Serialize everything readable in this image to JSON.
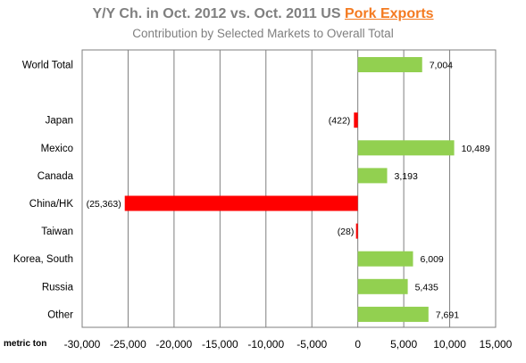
{
  "header": {
    "title_main": "Y/Y Ch.  in Oct. 2012 vs. Oct. 2011 US ",
    "title_highlight": "Pork Exports",
    "subtitle": "Contribution  by Selected Markets to Overall Total"
  },
  "chart_data": {
    "type": "bar",
    "orientation": "horizontal",
    "title": "Y/Y Ch.  in Oct. 2012 vs. Oct. 2011 US Pork Exports",
    "subtitle": "Contribution  by Selected Markets to Overall Total",
    "xlabel": "metric ton",
    "categories": [
      "World Total",
      "",
      "Japan",
      "Mexico",
      "Canada",
      "China/HK",
      "Taiwan",
      "Korea, South",
      "Russia",
      "Other"
    ],
    "values": [
      7004,
      null,
      -422,
      10489,
      3193,
      -25363,
      -28,
      6009,
      5435,
      7691
    ],
    "data_labels": [
      "7,004",
      "",
      "(422)",
      "10,489",
      "3,193",
      "(25,363)",
      "(28)",
      "6,009",
      "5,435",
      "7,691"
    ],
    "xlim": [
      -30000,
      15000
    ],
    "xticks": [
      -30000,
      -25000,
      -20000,
      -15000,
      -10000,
      -5000,
      0,
      5000,
      10000,
      15000
    ],
    "xtick_labels": [
      "-30,000",
      "-25,000",
      "-20,000",
      "-15,000",
      "-10,000",
      "-5,000",
      "0",
      "5,000",
      "10,000",
      "15,000"
    ],
    "grid": true,
    "colors": {
      "positive": "#92d050",
      "negative": "#ff0000",
      "grid": "#7f7f7f",
      "title": "#7f7f7f",
      "highlight": "#f47a20"
    }
  }
}
